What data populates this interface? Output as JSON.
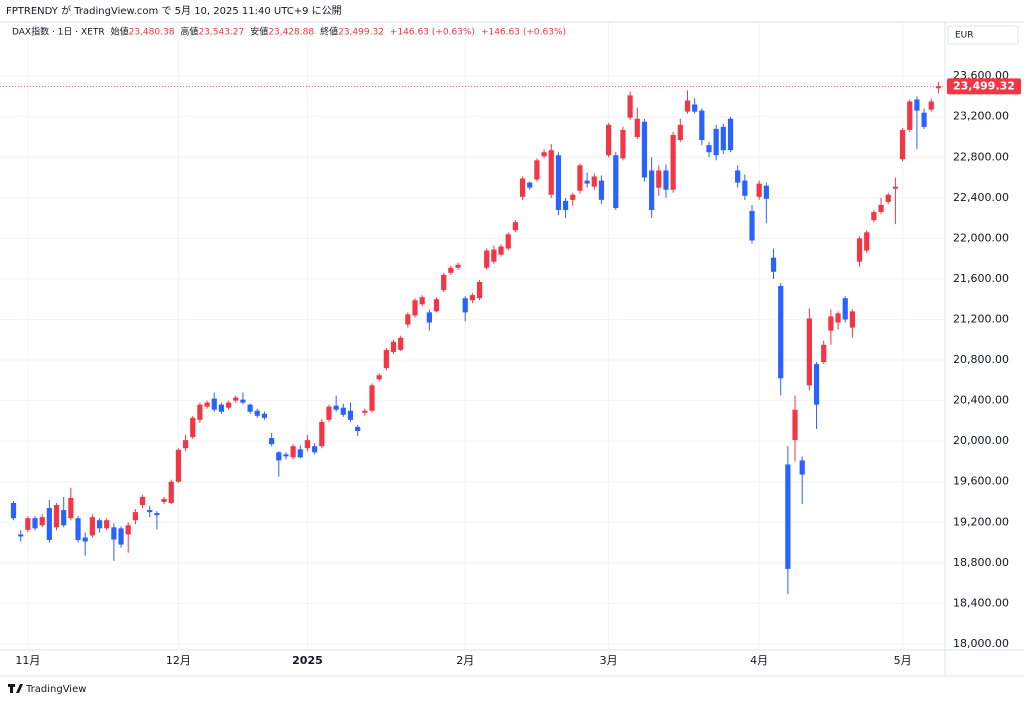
{
  "header": {
    "publisher": "FPTRENDY が TradingView.com で 5月 10, 2025 11:40 UTC+9 に公開"
  },
  "chart_data": {
    "type": "candlestick",
    "legend": {
      "symbol": "DAX指数 · 1日 · XETR",
      "items": [
        {
          "label": "始値",
          "value": "23,480.38"
        },
        {
          "label": "高値",
          "value": "23,543.27"
        },
        {
          "label": "安値",
          "value": "23,428.88"
        },
        {
          "label": "終値",
          "value": "23,499.32"
        }
      ],
      "change": "+146.63 (+0.63%)"
    },
    "currency": "EUR",
    "watermark": "TradingView",
    "up_color": "#f23645",
    "down_color": "#2962ff",
    "categories": [
      null,
      null,
      "11月",
      null,
      null,
      null,
      null,
      null,
      null,
      null,
      null,
      null,
      null,
      null,
      null,
      null,
      null,
      null,
      null,
      null,
      null,
      null,
      null,
      "12月",
      null,
      null,
      null,
      null,
      null,
      null,
      null,
      null,
      null,
      null,
      null,
      null,
      null,
      null,
      null,
      null,
      null,
      "2025",
      null,
      null,
      null,
      null,
      null,
      null,
      null,
      null,
      null,
      null,
      null,
      null,
      null,
      null,
      null,
      null,
      null,
      null,
      null,
      null,
      null,
      "2月",
      null,
      null,
      null,
      null,
      null,
      null,
      null,
      null,
      null,
      null,
      null,
      null,
      null,
      null,
      null,
      null,
      null,
      null,
      null,
      "3月",
      null,
      null,
      null,
      null,
      null,
      null,
      null,
      null,
      null,
      null,
      null,
      null,
      null,
      null,
      null,
      null,
      null,
      null,
      null,
      null,
      "4月",
      null,
      null,
      null,
      null,
      null,
      null,
      null,
      null,
      null,
      null,
      null,
      null,
      null,
      null,
      null,
      null,
      null,
      null,
      null,
      "5月",
      null,
      null,
      null,
      null,
      null
    ],
    "open": [
      19390,
      19080,
      19125,
      19240,
      19170,
      19340,
      19150,
      19320,
      19240,
      19240,
      19050,
      19070,
      19220,
      19140,
      19150,
      19140,
      19080,
      19220,
      19370,
      19320,
      19290,
      19400,
      19390,
      19600,
      19930,
      20040,
      20210,
      20340,
      20420,
      20360,
      20330,
      20400,
      20410,
      20360,
      20300,
      20270,
      20030,
      19890,
      19870,
      19840,
      19920,
      19930,
      19950,
      19950,
      20210,
      20350,
      20330,
      20300,
      20140,
      20280,
      20300,
      20610,
      20720,
      20880,
      20900,
      21150,
      21240,
      21350,
      21270,
      21280,
      21490,
      21660,
      21710,
      21410,
      21390,
      21410,
      21710,
      21770,
      21840,
      21900,
      22080,
      22410,
      22550,
      22580,
      22810,
      22430,
      22820,
      22370,
      22380,
      22470,
      22570,
      22510,
      22570,
      22820,
      22820,
      22790,
      23190,
      23000,
      23150,
      22670,
      22500,
      22670,
      22480,
      22970,
      23250,
      23320,
      23260,
      22920,
      23080,
      23100,
      23180,
      22670,
      22570,
      22270,
      22410,
      22520,
      21810,
      21530,
      19770,
      20010,
      19810,
      20550,
      20760,
      20780,
      21090,
      21170,
      21410,
      21120,
      21770,
      21880,
      22180,
      22260,
      22360,
      22490,
      22780,
      23070,
      23370,
      23240,
      23270,
      23480.38
    ],
    "high": [
      19410,
      19120,
      19260,
      19260,
      19280,
      19420,
      19390,
      19450,
      19540,
      19260,
      19100,
      19280,
      19240,
      19240,
      19190,
      19160,
      19200,
      19330,
      19470,
      19360,
      19310,
      19450,
      19620,
      19930,
      20060,
      20250,
      20380,
      20400,
      20480,
      20380,
      20400,
      20450,
      20480,
      20370,
      20320,
      20290,
      20080,
      19900,
      19890,
      19970,
      19960,
      20060,
      19980,
      20220,
      20360,
      20450,
      20370,
      20380,
      20160,
      20320,
      20570,
      20670,
      20920,
      21000,
      21040,
      21270,
      21410,
      21440,
      21300,
      21420,
      21660,
      21730,
      21760,
      21430,
      21460,
      21590,
      21900,
      21930,
      21940,
      22060,
      22180,
      22610,
      22560,
      22790,
      22880,
      22930,
      22850,
      22400,
      22450,
      22740,
      22650,
      22640,
      22620,
      23140,
      22850,
      23100,
      23450,
      23290,
      23180,
      22800,
      22720,
      22730,
      23050,
      23180,
      23460,
      23380,
      23280,
      22950,
      23120,
      23130,
      23200,
      22720,
      22630,
      22330,
      22570,
      22550,
      21900,
      21560,
      19950,
      20450,
      19850,
      21310,
      20780,
      20990,
      21300,
      21280,
      21430,
      21300,
      22020,
      22080,
      22280,
      22400,
      22450,
      22600,
      23090,
      23370,
      23400,
      23280,
      23380,
      23543.27
    ],
    "low": [
      19220,
      19010,
      19100,
      19120,
      19150,
      19000,
      19120,
      19150,
      19220,
      19000,
      18870,
      19050,
      19100,
      19120,
      18820,
      18950,
      18900,
      19180,
      19340,
      19250,
      19130,
      19380,
      19380,
      19590,
      19900,
      20020,
      20180,
      20320,
      20290,
      20270,
      20310,
      20380,
      20360,
      20270,
      20230,
      20210,
      19950,
      19650,
      19820,
      19820,
      19830,
      19900,
      19870,
      19930,
      20190,
      20290,
      20240,
      20190,
      20050,
      20250,
      20280,
      20590,
      20700,
      20860,
      20890,
      21120,
      21220,
      21330,
      21090,
      21270,
      21470,
      21640,
      21690,
      21180,
      21360,
      21390,
      21690,
      21750,
      21820,
      21880,
      22060,
      22380,
      22480,
      22560,
      22790,
      22400,
      22230,
      22200,
      22320,
      22440,
      22500,
      22480,
      22340,
      22800,
      22280,
      22770,
      23170,
      22980,
      22560,
      22200,
      22420,
      22400,
      22450,
      22950,
      23230,
      23230,
      22920,
      22800,
      22770,
      22830,
      22850,
      22500,
      22380,
      21950,
      22380,
      22150,
      21600,
      20450,
      18490,
      19800,
      19380,
      20500,
      20120,
      20760,
      20950,
      21100,
      21170,
      21020,
      21720,
      21860,
      22160,
      22240,
      22340,
      22140,
      22760,
      23050,
      22880,
      23080,
      23250,
      23428.88
    ],
    "close": [
      19240,
      19060,
      19240,
      19140,
      19250,
      19025,
      19370,
      19170,
      19440,
      19025,
      19010,
      19250,
      19140,
      19220,
      19030,
      18980,
      19170,
      19300,
      19450,
      19300,
      19270,
      19430,
      19600,
      19915,
      20010,
      20230,
      20360,
      20380,
      20310,
      20290,
      20380,
      20430,
      20380,
      20290,
      20250,
      20230,
      19970,
      19810,
      19850,
      19950,
      19840,
      20010,
      19890,
      20190,
      20340,
      20310,
      20260,
      20210,
      20100,
      20300,
      20550,
      20650,
      20900,
      20980,
      21020,
      21250,
      21390,
      21420,
      21170,
      21400,
      21640,
      21710,
      21740,
      21270,
      21440,
      21570,
      21880,
      21890,
      21920,
      22040,
      22160,
      22590,
      22500,
      22770,
      22850,
      22870,
      22280,
      22280,
      22430,
      22720,
      22540,
      22610,
      22380,
      23120,
      22300,
      23070,
      23410,
      23180,
      22600,
      22280,
      22670,
      22480,
      23020,
      23120,
      23360,
      23250,
      22970,
      22850,
      22820,
      22870,
      22870,
      22550,
      22420,
      21980,
      22540,
      22390,
      21670,
      20620,
      18740,
      20310,
      19670,
      21210,
      20360,
      20950,
      21230,
      21260,
      21200,
      21280,
      22000,
      22060,
      22260,
      22330,
      22430,
      22510,
      23070,
      23350,
      23260,
      23100,
      23350,
      23499.32
    ],
    "last_price": {
      "value": 23499.32,
      "label": "23,499.32"
    },
    "ylim": [
      17940,
      24075
    ],
    "yticks": [
      {
        "value": 18000,
        "label": "18,000.00"
      },
      {
        "value": 18400,
        "label": "18,400.00"
      },
      {
        "value": 18800,
        "label": "18,800.00"
      },
      {
        "value": 19200,
        "label": "19,200.00"
      },
      {
        "value": 19600,
        "label": "19,600.00"
      },
      {
        "value": 20000,
        "label": "20,000.00"
      },
      {
        "value": 20400,
        "label": "20,400.00"
      },
      {
        "value": 20800,
        "label": "20,800.00"
      },
      {
        "value": 21200,
        "label": "21,200.00"
      },
      {
        "value": 21600,
        "label": "21,600.00"
      },
      {
        "value": 22000,
        "label": "22,000.00"
      },
      {
        "value": 22400,
        "label": "22,400.00"
      },
      {
        "value": 22800,
        "label": "22,800.00"
      },
      {
        "value": 23200,
        "label": "23,200.00"
      },
      {
        "value": 23600,
        "label": "23,600.00"
      }
    ],
    "grid": true
  }
}
